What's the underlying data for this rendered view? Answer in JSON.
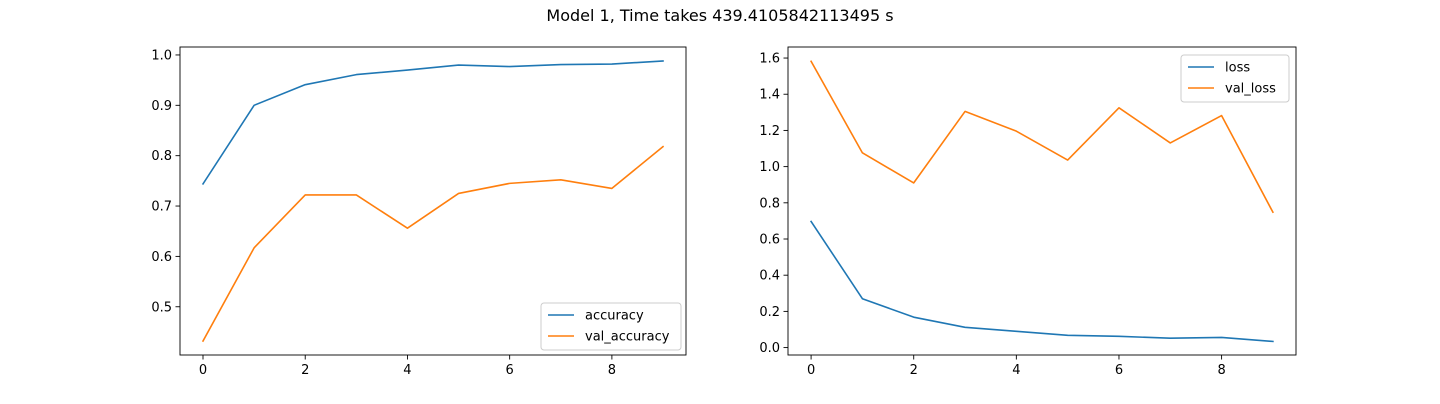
{
  "figure": {
    "title": "Model 1, Time takes 439.4105842113495 s"
  },
  "chart_data": [
    {
      "type": "line",
      "x": [
        0,
        1,
        2,
        3,
        4,
        5,
        6,
        7,
        8,
        9
      ],
      "series": [
        {
          "name": "accuracy",
          "color": "#1f77b4",
          "values": [
            0.744,
            0.9,
            0.941,
            0.961,
            0.97,
            0.98,
            0.977,
            0.981,
            0.982,
            0.988
          ]
        },
        {
          "name": "val_accuracy",
          "color": "#ff7f0e",
          "values": [
            0.432,
            0.617,
            0.722,
            0.722,
            0.656,
            0.725,
            0.745,
            0.752,
            0.735,
            0.818
          ]
        }
      ],
      "xticks": [
        0,
        2,
        4,
        6,
        8
      ],
      "yticks": [
        0.5,
        0.6,
        0.7,
        0.8,
        0.9,
        1.0
      ],
      "ytick_labels": [
        "0.5",
        "0.6",
        "0.7",
        "0.8",
        "0.9",
        "1.0"
      ],
      "xlim": [
        -0.45,
        9.45
      ],
      "ylim": [
        0.4042,
        1.0158
      ],
      "legend": "lower right",
      "grid": false
    },
    {
      "type": "line",
      "x": [
        0,
        1,
        2,
        3,
        4,
        5,
        6,
        7,
        8,
        9
      ],
      "series": [
        {
          "name": "loss",
          "color": "#1f77b4",
          "values": [
            0.697,
            0.27,
            0.168,
            0.112,
            0.09,
            0.068,
            0.062,
            0.052,
            0.056,
            0.034
          ]
        },
        {
          "name": "val_loss",
          "color": "#ff7f0e",
          "values": [
            1.582,
            1.076,
            0.91,
            1.305,
            1.196,
            1.036,
            1.325,
            1.131,
            1.282,
            0.748
          ]
        }
      ],
      "xticks": [
        0,
        2,
        4,
        6,
        8
      ],
      "yticks": [
        0.0,
        0.2,
        0.4,
        0.6,
        0.8,
        1.0,
        1.2,
        1.4,
        1.6
      ],
      "ytick_labels": [
        "0.0",
        "0.2",
        "0.4",
        "0.6",
        "0.8",
        "1.0",
        "1.2",
        "1.4",
        "1.6"
      ],
      "xlim": [
        -0.45,
        9.45
      ],
      "ylim": [
        -0.041,
        1.661
      ],
      "legend": "upper right",
      "grid": false
    }
  ]
}
